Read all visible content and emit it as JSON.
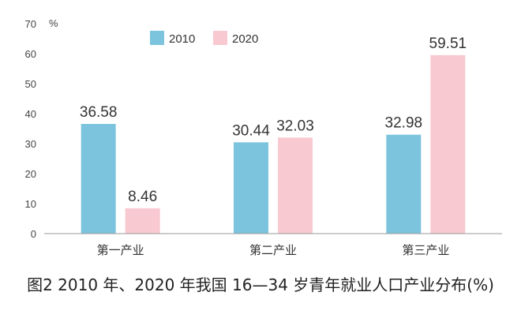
{
  "caption": "图2 2010 年、2020 年我国 16—34 岁青年就业人口产业分布(%)",
  "chart_data": {
    "type": "bar",
    "title": "",
    "ylabel": "%",
    "xlabel": "",
    "ylim": [
      0,
      70
    ],
    "yticks": [
      0,
      10,
      20,
      30,
      40,
      50,
      60,
      70
    ],
    "grid": false,
    "legend_position": "top-center",
    "categories": [
      "第一产业",
      "第二产业",
      "第三产业"
    ],
    "series": [
      {
        "name": "2010",
        "color": "#7cc4dd",
        "values": [
          36.58,
          30.44,
          32.98
        ],
        "labels": [
          "36.58",
          "30.44",
          "32.98"
        ]
      },
      {
        "name": "2020",
        "color": "#f9c9d1",
        "values": [
          8.46,
          32.03,
          59.51
        ],
        "labels": [
          "8.46",
          "32.03",
          "59.51"
        ]
      }
    ]
  }
}
